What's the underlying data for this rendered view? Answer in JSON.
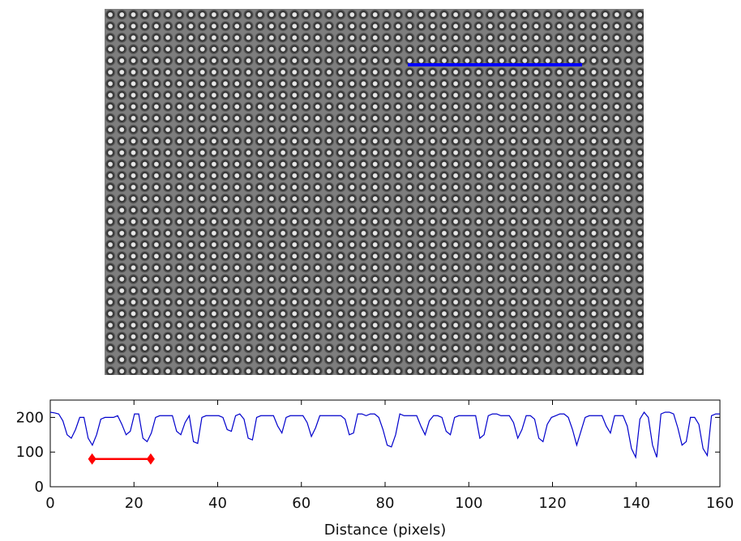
{
  "chart_data": [
    {
      "type": "image",
      "description_visible": "",
      "profile_line_color": "#0000ff"
    },
    {
      "type": "line",
      "title": "",
      "xlabel": "Distance (pixels)",
      "ylabel": "",
      "xlim": [
        0,
        160
      ],
      "ylim": [
        0,
        250
      ],
      "x_ticks": [
        "0",
        "20",
        "40",
        "60",
        "80",
        "100",
        "120",
        "140",
        "160"
      ],
      "y_ticks": [
        "0",
        "100",
        "200"
      ],
      "grid": false,
      "series_color": "#0000cc",
      "period_marker": {
        "x_start": 10,
        "x_end": 24,
        "y": 80,
        "color": "#ff0000"
      },
      "series": [
        {
          "values": [
            215,
            213,
            210,
            190,
            150,
            140,
            165,
            200,
            200,
            140,
            120,
            150,
            195,
            200,
            200,
            200,
            205,
            180,
            150,
            160,
            210,
            210,
            140,
            130,
            155,
            200,
            205,
            205,
            205,
            205,
            160,
            150,
            185,
            205,
            130,
            125,
            200,
            205,
            205,
            205,
            205,
            200,
            165,
            160,
            205,
            210,
            195,
            140,
            135,
            200,
            205,
            205,
            205,
            205,
            175,
            155,
            200,
            205,
            205,
            205,
            205,
            185,
            145,
            170,
            205,
            205,
            205,
            205,
            205,
            205,
            195,
            150,
            155,
            210,
            210,
            205,
            210,
            210,
            200,
            165,
            120,
            115,
            150,
            210,
            205,
            205,
            205,
            205,
            175,
            150,
            190,
            205,
            205,
            200,
            160,
            150,
            200,
            205,
            205,
            205,
            205,
            205,
            140,
            150,
            205,
            210,
            210,
            205,
            205,
            205,
            185,
            140,
            165,
            205,
            205,
            195,
            140,
            130,
            180,
            200,
            205,
            210,
            210,
            200,
            165,
            120,
            160,
            200,
            205,
            205,
            205,
            205,
            175,
            155,
            205,
            205,
            205,
            175,
            110,
            85,
            195,
            215,
            200,
            120,
            85,
            210,
            215,
            215,
            210,
            170,
            120,
            130,
            200,
            200,
            180,
            110,
            90,
            205,
            210,
            210
          ]
        }
      ]
    }
  ]
}
